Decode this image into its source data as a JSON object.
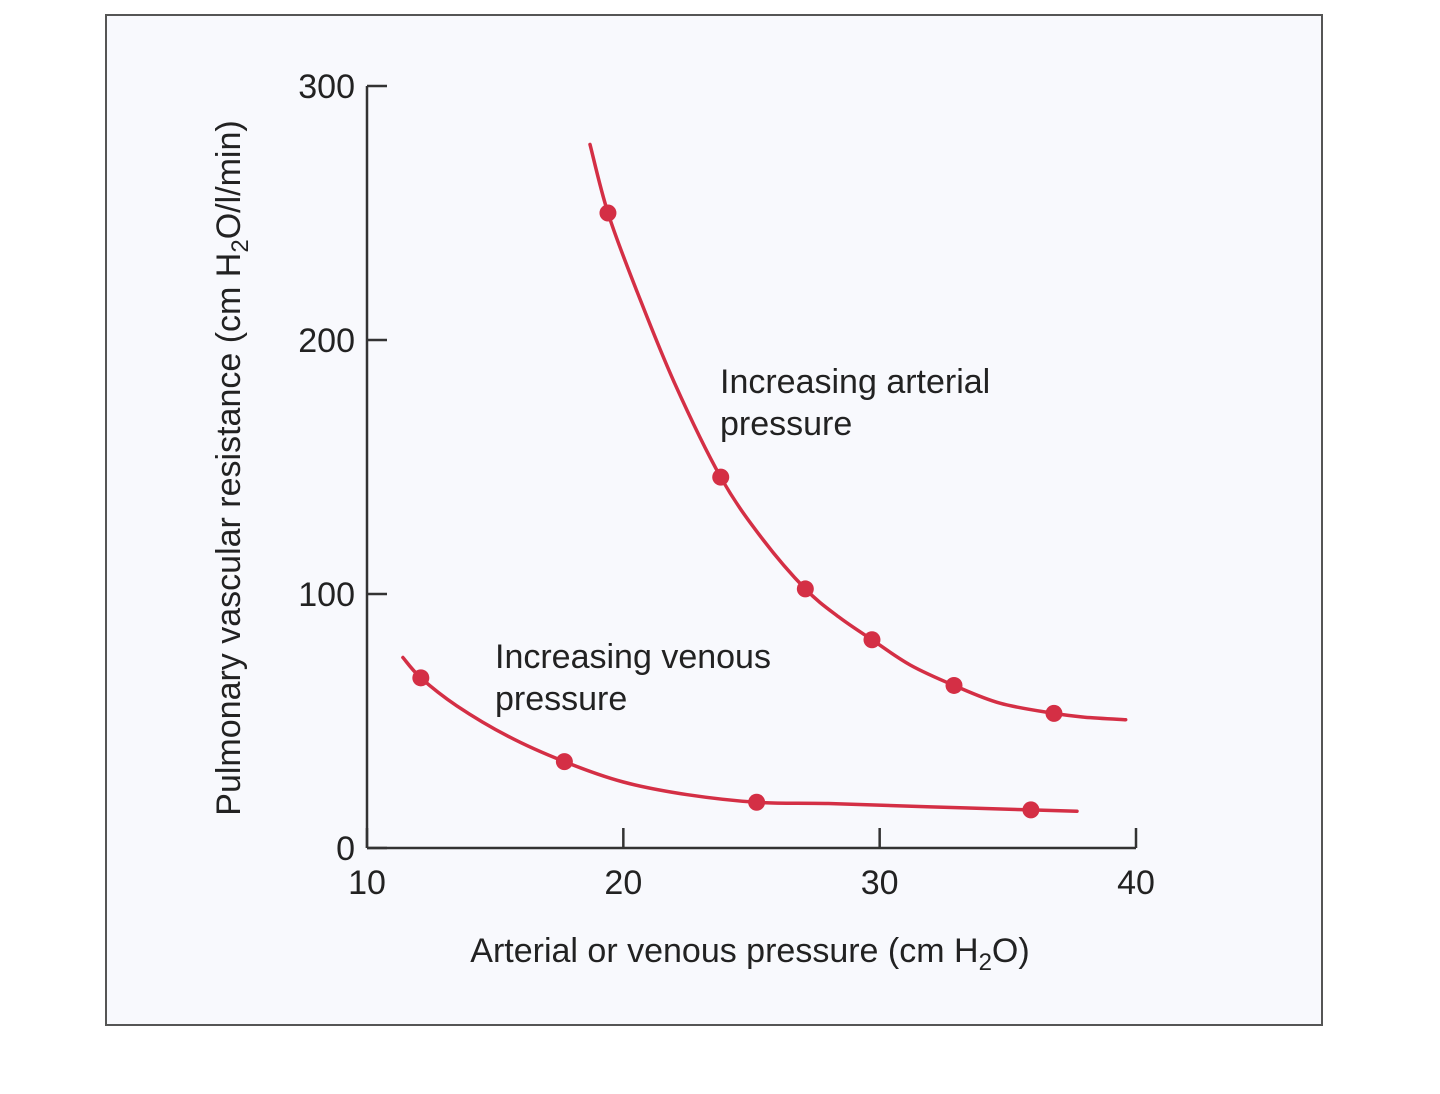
{
  "chart_data": {
    "type": "line",
    "title": "",
    "xlabel": {
      "pre": "Arterial or venous pressure (cm H",
      "sub": "2",
      "post": "O)"
    },
    "ylabel": {
      "pre": "Pulmonary vascular resistance (cm H",
      "sub": "2",
      "post": "O/l/min)"
    },
    "xlim": [
      10,
      40
    ],
    "ylim": [
      0,
      300
    ],
    "x_ticks": [
      10,
      20,
      30,
      40
    ],
    "x_tick_labels": [
      "10",
      "20",
      "30",
      "40"
    ],
    "y_ticks": [
      0,
      100,
      200,
      300
    ],
    "y_tick_labels": [
      "0",
      "100",
      "200",
      "300"
    ],
    "grid": false,
    "color": "#d42f45",
    "series": [
      {
        "name": "Increasing arterial pressure",
        "label_lines": [
          "Increasing arterial",
          "pressure"
        ],
        "points": [
          [
            19.4,
            250
          ],
          [
            23.8,
            146
          ],
          [
            27.1,
            102
          ],
          [
            29.7,
            82
          ],
          [
            32.9,
            64
          ],
          [
            36.8,
            53
          ]
        ],
        "curve": [
          [
            18.7,
            277
          ],
          [
            19.4,
            250
          ],
          [
            20.5,
            220
          ],
          [
            22.0,
            183
          ],
          [
            23.8,
            146
          ],
          [
            25.4,
            122
          ],
          [
            27.1,
            102
          ],
          [
            28.4,
            91
          ],
          [
            29.7,
            82
          ],
          [
            31.2,
            72
          ],
          [
            32.9,
            64
          ],
          [
            34.7,
            57
          ],
          [
            36.8,
            53
          ],
          [
            38.0,
            51.5
          ],
          [
            39.6,
            50.5
          ]
        ]
      },
      {
        "name": "Increasing venous pressure",
        "label_lines": [
          "Increasing venous",
          "pressure"
        ],
        "points": [
          [
            12.1,
            67
          ],
          [
            17.7,
            34
          ],
          [
            25.2,
            18
          ],
          [
            35.9,
            15
          ]
        ],
        "curve": [
          [
            11.4,
            75
          ],
          [
            12.1,
            67
          ],
          [
            13.5,
            56
          ],
          [
            15.5,
            44
          ],
          [
            17.7,
            34
          ],
          [
            20.0,
            26
          ],
          [
            22.5,
            21
          ],
          [
            25.2,
            18
          ],
          [
            28.0,
            17.5
          ],
          [
            32.0,
            16.2
          ],
          [
            35.9,
            15
          ],
          [
            37.7,
            14.5
          ]
        ]
      }
    ]
  }
}
